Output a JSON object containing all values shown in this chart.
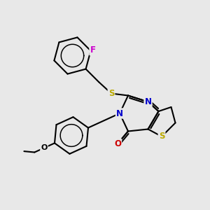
{
  "bg_color": "#e8e8e8",
  "colors": {
    "F": "#cc00cc",
    "S": "#bbaa00",
    "N": "#0000cc",
    "O": "#cc0000",
    "C": "#000000",
    "bond": "#000000"
  },
  "figsize": [
    3.0,
    3.0
  ],
  "dpi": 100
}
